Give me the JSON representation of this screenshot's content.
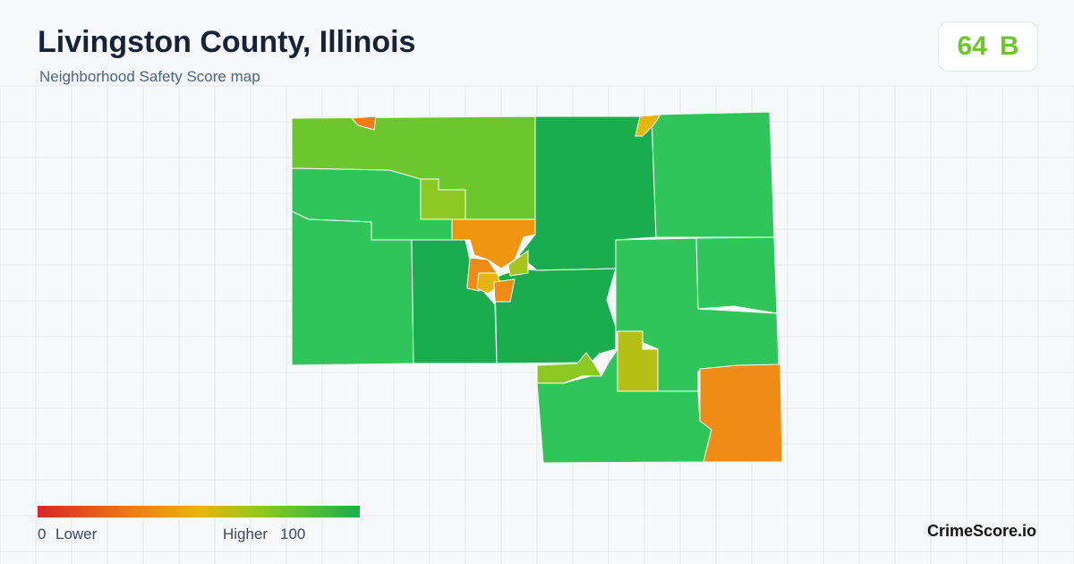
{
  "header": {
    "title": "Livingston County, Illinois",
    "subtitle": "Neighborhood Safety Score map"
  },
  "score": {
    "value": 64,
    "grade": "B"
  },
  "legend": {
    "min": 0,
    "min_label": "Lower",
    "max_label": "Higher",
    "max": 100
  },
  "brand": "CrimeScore.io"
}
